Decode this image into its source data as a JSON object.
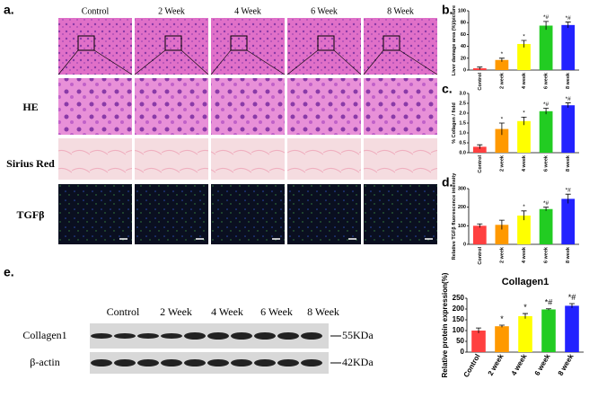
{
  "figure": {
    "panel_labels": [
      "a.",
      "b.",
      "c.",
      "d.",
      "e."
    ],
    "histology": {
      "columns": [
        "Control",
        "2 Week",
        "4 Week",
        "6 Week",
        "8 Week"
      ],
      "rows": [
        "HE",
        "Sirius Red",
        "TGFβ"
      ]
    },
    "western": {
      "columns": [
        "Control",
        "2 Week",
        "4 Week",
        "6 Week",
        "8 Week"
      ],
      "bands": [
        "Collagen1",
        "β-actin"
      ],
      "sizes": [
        "55KDa",
        "42KDa"
      ]
    }
  },
  "chart_data": [
    {
      "type": "bar",
      "ylabel": "Liver damage area (%)/picture",
      "categories": [
        "Control",
        "2 week",
        "4 week",
        "6 week",
        "8 week"
      ],
      "values": [
        3,
        17,
        44,
        75,
        76
      ],
      "errors": [
        2,
        3,
        6,
        7,
        5
      ],
      "colors": [
        "#ff4040",
        "#ff9900",
        "#ffff00",
        "#22cc22",
        "#2222ff"
      ],
      "annotations": [
        null,
        "*",
        "*",
        "*#",
        "*#"
      ],
      "ylim": [
        0,
        100
      ],
      "yticks": [
        0,
        20,
        40,
        60,
        80,
        100
      ]
    },
    {
      "type": "bar",
      "ylabel": "% Collagen / field",
      "categories": [
        "Control",
        "2 week",
        "4 week",
        "6 week",
        "8 week"
      ],
      "values": [
        0.3,
        1.2,
        1.6,
        2.1,
        2.4
      ],
      "errors": [
        0.1,
        0.3,
        0.2,
        0.15,
        0.12
      ],
      "colors": [
        "#ff4040",
        "#ff9900",
        "#ffff00",
        "#22cc22",
        "#2222ff"
      ],
      "annotations": [
        null,
        "*",
        "*",
        "*#",
        "*#"
      ],
      "ylim": [
        0,
        3
      ],
      "yticks": [
        {
          "value": 0,
          "label": "0.0"
        },
        {
          "value": 0.5,
          "label": "0.5"
        },
        {
          "value": 1,
          "label": "1.0"
        },
        {
          "value": 1.5,
          "label": "1.5"
        },
        {
          "value": 2,
          "label": "2.0"
        },
        {
          "value": 2.5,
          "label": "2.5"
        },
        {
          "value": 3,
          "label": "3.0"
        }
      ]
    },
    {
      "type": "bar",
      "ylabel": "Relative TGFβ fluorescence intensity",
      "categories": [
        "Control",
        "2 week",
        "4 week",
        "6 week",
        "8 week"
      ],
      "values": [
        100,
        105,
        155,
        190,
        245
      ],
      "errors": [
        10,
        25,
        25,
        10,
        25
      ],
      "colors": [
        "#ff4040",
        "#ff9900",
        "#ffff00",
        "#22cc22",
        "#2222ff"
      ],
      "annotations": [
        null,
        null,
        "*",
        "*#",
        "*#"
      ],
      "ylim": [
        0,
        300
      ],
      "yticks": [
        0,
        100,
        200,
        300
      ]
    },
    {
      "type": "bar",
      "title": "Collagen1",
      "ylabel": "Relative protein expression(%)",
      "categories": [
        "Control",
        "2 week",
        "4 week",
        "6 week",
        "8 week"
      ],
      "values": [
        100,
        120,
        167,
        198,
        215
      ],
      "errors": [
        12,
        5,
        12,
        3,
        10
      ],
      "colors": [
        "#ff4040",
        "#ff9900",
        "#ffff00",
        "#22cc22",
        "#2222ff"
      ],
      "annotations": [
        null,
        "*",
        "*",
        "*#",
        "*#"
      ],
      "ylim": [
        0,
        250
      ],
      "yticks": [
        0,
        50,
        100,
        150,
        200,
        250
      ]
    }
  ]
}
